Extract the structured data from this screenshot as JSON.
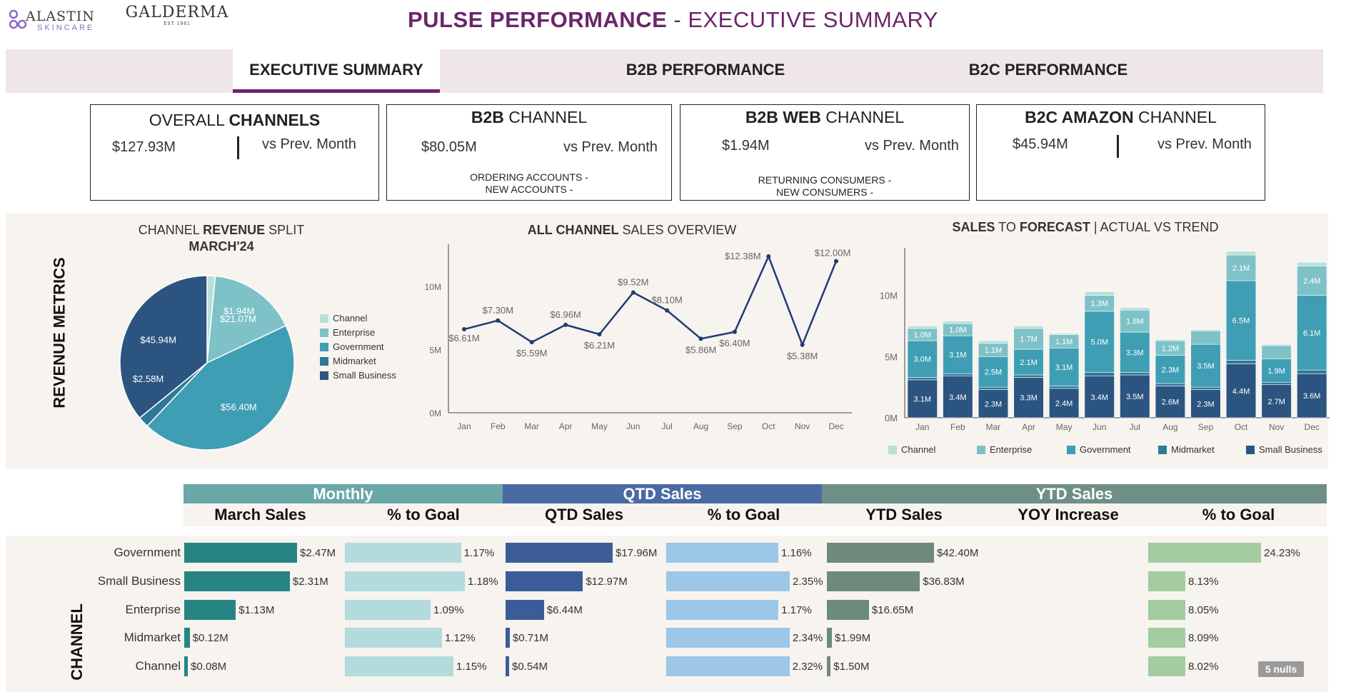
{
  "header": {
    "logo_alastin": "ALASTIN",
    "logo_alastin_sub": "SKINCARE",
    "logo_galderma": "GALDERMA",
    "logo_galderma_sub": "EST 1981",
    "title_bold": "PULSE PERFORMANCE",
    "title_rest": " - EXECUTIVE SUMMARY"
  },
  "nav": {
    "tabs": [
      {
        "label": "EXECUTIVE SUMMARY",
        "active": true
      },
      {
        "label": "B2B PERFORMANCE",
        "active": false
      },
      {
        "label": "B2C PERFORMANCE",
        "active": false
      }
    ]
  },
  "cards": [
    {
      "title_pre": "OVERALL ",
      "title_bold": "CHANNELS",
      "title_post": "",
      "value": "$127.93M",
      "vs": "vs Prev. Month",
      "sub1": "",
      "sub2": ""
    },
    {
      "title_pre": "",
      "title_bold": "B2B",
      "title_post": " CHANNEL",
      "value": "$80.05M",
      "vs": "vs Prev. Month",
      "sub1": "ORDERING ACCOUNTS -",
      "sub2": "NEW ACCOUNTS -"
    },
    {
      "title_pre": "",
      "title_bold": "B2B WEB",
      "title_post": " CHANNEL",
      "value": "$1.94M",
      "vs": "vs Prev. Month",
      "sub1": "RETURNING CONSUMERS -",
      "sub2": "NEW CONSUMERS -"
    },
    {
      "title_pre": "",
      "title_bold": "B2C AMAZON",
      "title_post": " CHANNEL",
      "value": "$45.94M",
      "vs": "vs Prev. Month",
      "sub1": "",
      "sub2": ""
    }
  ],
  "revenue_section": {
    "label": "REVENUE METRICS"
  },
  "colors": {
    "channel": "#b8e0d8",
    "enterprise": "#7ec2c8",
    "government": "#3f9eb4",
    "midmarket": "#2f7898",
    "small_business": "#2b5580",
    "line": "#1f3b73",
    "monthly_hdr": "#6aa7a8",
    "qtd_hdr": "#4a6aa3",
    "ytd_hdr": "#6e8f85",
    "bar_monthly": "#268583",
    "bar_monthly_goal": "#b4dbdb",
    "bar_qtd": "#3b5c98",
    "bar_qtd_goal": "#9dc7e7",
    "bar_ytd": "#6e8a7c",
    "bar_ytd_goal": "#a3cca0"
  },
  "chart_data": [
    {
      "type": "pie",
      "title_pre": "CHANNEL ",
      "title_bold": "REVENUE",
      "title_post": " SPLIT",
      "subtitle": "MARCH'24",
      "legend_position": "right",
      "slices": [
        {
          "name": "Channel",
          "value": 1.94,
          "label": "$1.94M"
        },
        {
          "name": "Enterprise",
          "value": 21.07,
          "label": "$21.07M"
        },
        {
          "name": "Government",
          "value": 56.4,
          "label": "$56.40M"
        },
        {
          "name": "Midmarket",
          "value": 2.58,
          "label": "$2.58M"
        },
        {
          "name": "Small Business",
          "value": 45.94,
          "label": "$45.94M"
        }
      ]
    },
    {
      "type": "line",
      "title_bold": "ALL CHANNEL",
      "title_post": " SALES OVERVIEW",
      "categories": [
        "Jan",
        "Feb",
        "Mar",
        "Apr",
        "May",
        "Jun",
        "Jul",
        "Aug",
        "Sep",
        "Oct",
        "Nov",
        "Dec"
      ],
      "values": [
        6.61,
        7.3,
        5.59,
        6.96,
        6.21,
        9.52,
        8.1,
        5.86,
        6.4,
        12.38,
        5.38,
        12.0
      ],
      "labels": [
        "$6.61M",
        "$7.30M",
        "$5.59M",
        "$6.96M",
        "$6.21M",
        "$9.52M",
        "$8.10M",
        "$5.86M",
        "$6.40M",
        "$12.38M",
        "$5.38M",
        "$12.00M"
      ],
      "yticks": [
        "0M",
        "5M",
        "10M"
      ],
      "ylim": [
        0,
        13
      ]
    },
    {
      "type": "bar",
      "stacked": true,
      "title_bold1": "SALES",
      "title_mid": " TO ",
      "title_bold2": "FORECAST",
      "title_post": "  |  ACTUAL VS TREND",
      "categories": [
        "Jan",
        "Feb",
        "Mar",
        "Apr",
        "May",
        "Jun",
        "Jul",
        "Aug",
        "Sep",
        "Oct",
        "Nov",
        "Dec"
      ],
      "yticks": [
        "0M",
        "5M",
        "10M"
      ],
      "ylim": [
        0,
        14
      ],
      "legend_position": "bottom",
      "series": [
        {
          "name": "Small Business",
          "values": [
            3.1,
            3.4,
            2.3,
            3.3,
            2.4,
            3.4,
            3.5,
            2.6,
            2.3,
            4.4,
            2.7,
            3.6
          ],
          "labels": [
            "3.1M",
            "3.4M",
            "2.3M",
            "3.3M",
            "2.4M",
            "3.4M",
            "3.5M",
            "2.6M",
            "2.3M",
            "4.4M",
            "2.7M",
            "3.6M"
          ]
        },
        {
          "name": "Midmarket",
          "values": [
            0.2,
            0.2,
            0.2,
            0.2,
            0.2,
            0.3,
            0.2,
            0.2,
            0.2,
            0.3,
            0.2,
            0.3
          ],
          "labels": [
            "",
            "",
            "",
            "",
            "",
            "",
            "",
            "",
            "",
            "",
            "",
            ""
          ]
        },
        {
          "name": "Government",
          "values": [
            3.0,
            3.1,
            2.5,
            2.1,
            3.1,
            5.0,
            3.3,
            2.3,
            3.5,
            6.5,
            1.9,
            6.1
          ],
          "labels": [
            "3.0M",
            "3.1M",
            "2.5M",
            "2.1M",
            "3.1M",
            "5.0M",
            "3.3M",
            "2.3M",
            "3.5M",
            "6.5M",
            "1.9M",
            "6.1M"
          ]
        },
        {
          "name": "Enterprise",
          "values": [
            1.0,
            1.0,
            1.1,
            1.7,
            1.1,
            1.3,
            1.8,
            1.2,
            1.1,
            2.1,
            1.1,
            2.4
          ],
          "labels": [
            "1.0M",
            "1.0M",
            "1.1M",
            "1.7M",
            "1.1M",
            "1.3M",
            "1.8M",
            "1.2M",
            "",
            "2.1M",
            "",
            "2.4M"
          ]
        },
        {
          "name": "Channel",
          "values": [
            0.2,
            0.2,
            0.2,
            0.2,
            0.1,
            0.3,
            0.2,
            0.1,
            0.1,
            0.3,
            0.1,
            0.3
          ],
          "labels": [
            "",
            "",
            "",
            "",
            "",
            "",
            "",
            "",
            "",
            "",
            "",
            ""
          ]
        }
      ]
    },
    {
      "type": "table",
      "row_header": "CHANNEL",
      "groups": [
        "Monthly",
        "QTD Sales",
        "YTD Sales"
      ],
      "columns": [
        "March Sales",
        "% to Goal",
        "QTD Sales",
        "% to Goal",
        "YTD Sales",
        "YOY Increase",
        "% to Goal"
      ],
      "rows": [
        {
          "name": "Government",
          "march": 2.47,
          "march_label": "$2.47M",
          "m_goal": 1.17,
          "m_goal_label": "1.17%",
          "qtd": 17.96,
          "qtd_label": "$17.96M",
          "q_goal": 1.16,
          "q_goal_label": "1.16%",
          "ytd": 42.4,
          "ytd_label": "$42.40M",
          "y_goal": 24.23,
          "y_goal_label": "24.23%"
        },
        {
          "name": "Small Business",
          "march": 2.31,
          "march_label": "$2.31M",
          "m_goal": 1.18,
          "m_goal_label": "1.18%",
          "qtd": 12.97,
          "qtd_label": "$12.97M",
          "q_goal": 2.35,
          "q_goal_label": "2.35%",
          "ytd": 36.83,
          "ytd_label": "$36.83M",
          "y_goal": 8.13,
          "y_goal_label": "8.13%"
        },
        {
          "name": "Enterprise",
          "march": 1.13,
          "march_label": "$1.13M",
          "m_goal": 1.09,
          "m_goal_label": "1.09%",
          "qtd": 6.44,
          "qtd_label": "$6.44M",
          "q_goal": 1.17,
          "q_goal_label": "1.17%",
          "ytd": 16.65,
          "ytd_label": "$16.65M",
          "y_goal": 8.05,
          "y_goal_label": "8.05%"
        },
        {
          "name": "Midmarket",
          "march": 0.12,
          "march_label": "$0.12M",
          "m_goal": 1.12,
          "m_goal_label": "1.12%",
          "qtd": 0.71,
          "qtd_label": "$0.71M",
          "q_goal": 2.34,
          "q_goal_label": "2.34%",
          "ytd": 1.99,
          "ytd_label": "$1.99M",
          "y_goal": 8.09,
          "y_goal_label": "8.09%"
        },
        {
          "name": "Channel",
          "march": 0.08,
          "march_label": "$0.08M",
          "m_goal": 1.15,
          "m_goal_label": "1.15%",
          "qtd": 0.54,
          "qtd_label": "$0.54M",
          "q_goal": 2.32,
          "q_goal_label": "2.32%",
          "ytd": 1.5,
          "ytd_label": "$1.50M",
          "y_goal": 8.02,
          "y_goal_label": "8.02%"
        }
      ],
      "nulls_badge": "5 nulls"
    }
  ]
}
